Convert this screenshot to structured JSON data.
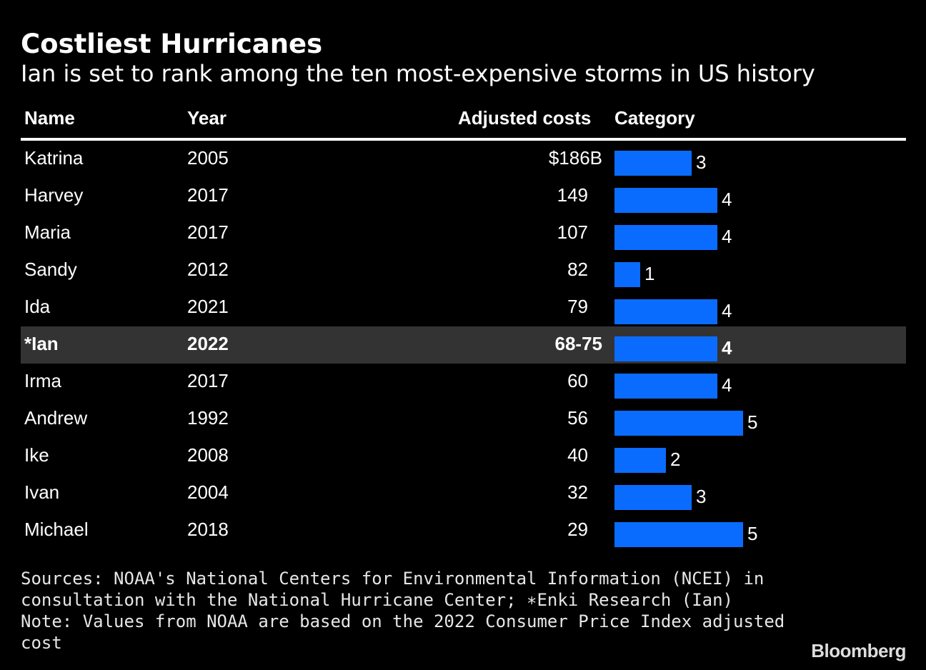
{
  "title": "Costliest Hurricanes",
  "subtitle": "Ian is set to rank among the ten most-expensive storms in US history",
  "columns": {
    "name": "Name",
    "year": "Year",
    "cost": "Adjusted costs",
    "category": "Category"
  },
  "chart_data": {
    "type": "table",
    "highlight_index": 5,
    "rows": [
      {
        "name": "Katrina",
        "year": "2005",
        "cost": "$186B",
        "category": 3
      },
      {
        "name": "Harvey",
        "year": "2017",
        "cost": "149",
        "category": 4
      },
      {
        "name": "Maria",
        "year": "2017",
        "cost": "107",
        "category": 4
      },
      {
        "name": "Sandy",
        "year": "2012",
        "cost": "82",
        "category": 1
      },
      {
        "name": "Ida",
        "year": "2021",
        "cost": "79",
        "category": 4
      },
      {
        "name": "*Ian",
        "year": "2022",
        "cost": "68-75",
        "category": 4
      },
      {
        "name": "Irma",
        "year": "2017",
        "cost": "60",
        "category": 4
      },
      {
        "name": "Andrew",
        "year": "1992",
        "cost": "56",
        "category": 5
      },
      {
        "name": "Ike",
        "year": "2008",
        "cost": "40",
        "category": 2
      },
      {
        "name": "Ivan",
        "year": "2004",
        "cost": "32",
        "category": 3
      },
      {
        "name": "Michael",
        "year": "2018",
        "cost": "29",
        "category": 5
      }
    ],
    "category_max": 5,
    "bar_color": "#0a6cff",
    "highlight_color": "#333333"
  },
  "notes": [
    "Sources: NOAA's National Centers for Environmental Information (NCEI) in",
    "consultation with the National Hurricane Center; ∗Enki Research (Ian)",
    "Note: Values from NOAA are based on the 2022 Consumer Price Index adjusted",
    "cost"
  ],
  "logo": "Bloomberg"
}
